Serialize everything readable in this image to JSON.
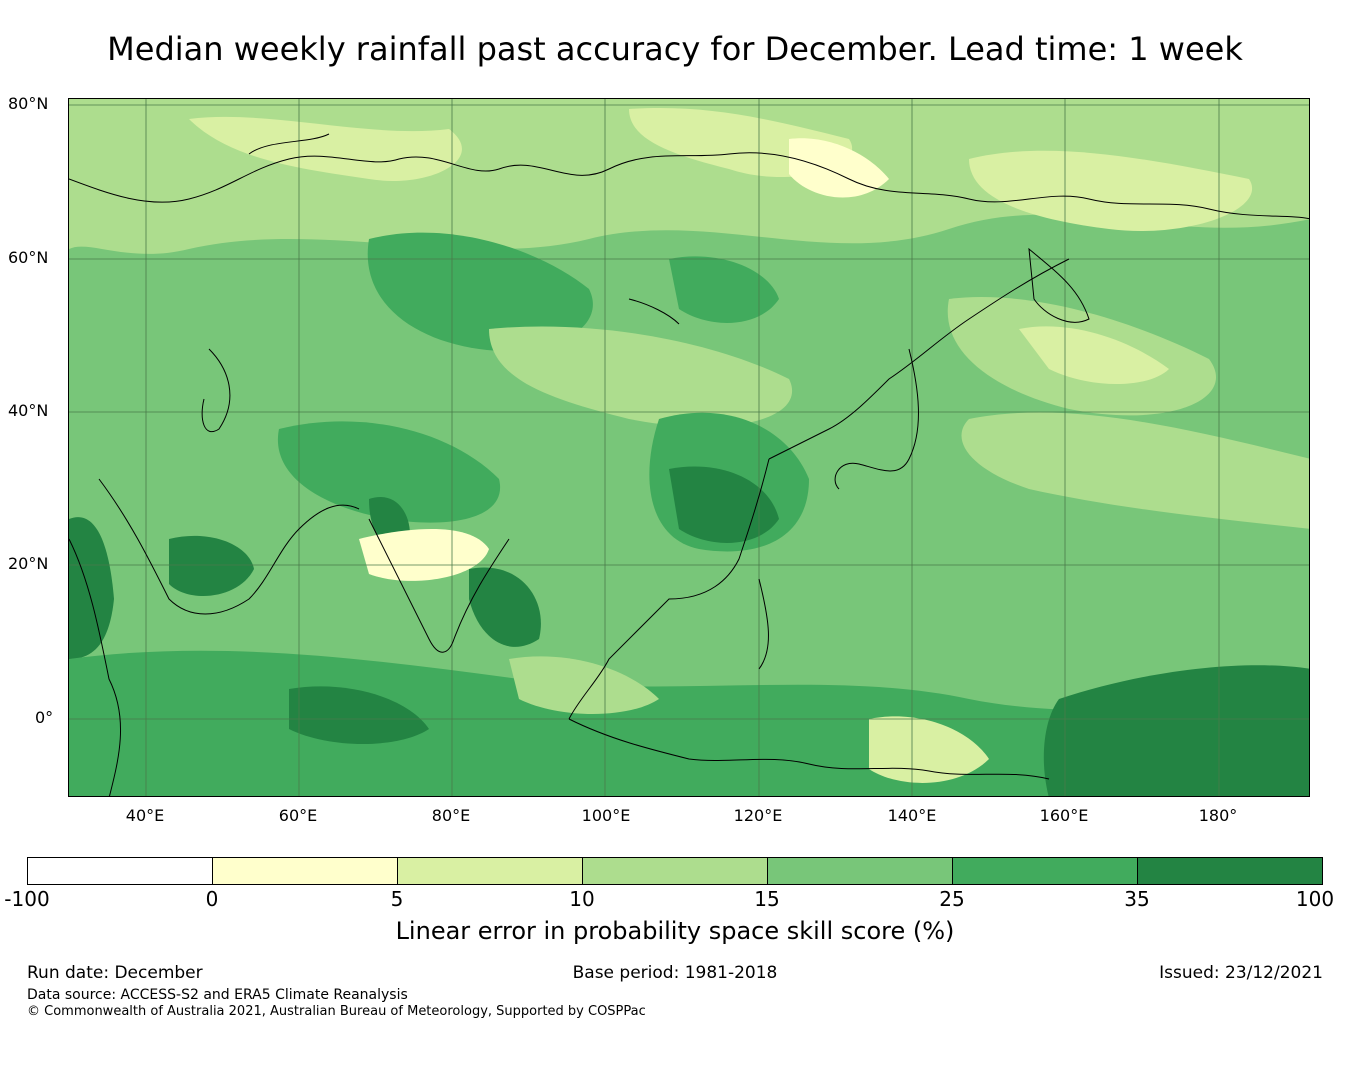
{
  "title": "Median weekly rainfall past accuracy for December. Lead time: 1 week",
  "map": {
    "lat_labels": [
      "80°N",
      "60°N",
      "40°N",
      "20°N",
      "0°"
    ],
    "lon_labels": [
      "40°E",
      "60°E",
      "80°E",
      "100°E",
      "120°E",
      "140°E",
      "160°E",
      "180°"
    ],
    "extent": {
      "lon_min": 30,
      "lon_max": 192,
      "lat_min": -10,
      "lat_max": 80
    },
    "gridlines": true
  },
  "colorbar": {
    "ticks": [
      "-100",
      "0",
      "5",
      "10",
      "15",
      "25",
      "35",
      "100"
    ],
    "colors": [
      "#ffffff",
      "#ffffcc",
      "#d9f0a3",
      "#addd8e",
      "#78c679",
      "#41ab5d",
      "#238443"
    ],
    "label": "Linear error in probability space skill score (%)"
  },
  "footer": {
    "run_date": "Run date: December",
    "base_period": "Base period: 1981-2018",
    "issued": "Issued: 23/12/2021",
    "data_source": "Data source: ACCESS-S2 and ERA5 Climate Reanalysis",
    "copyright": "© Commonwealth of Australia 2021, Australian Bureau of Meteorology, Supported by COSPPac"
  }
}
